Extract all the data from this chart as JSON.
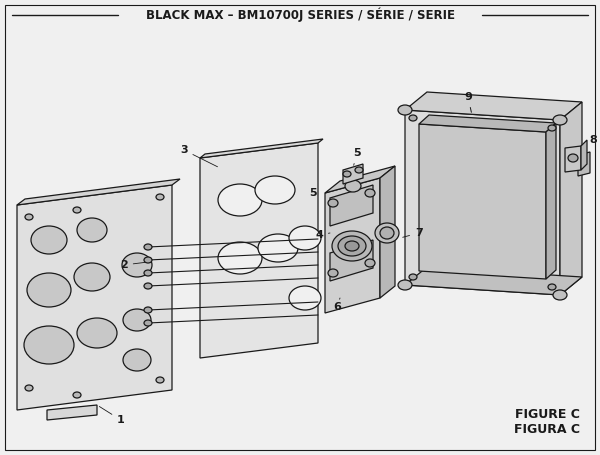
{
  "title": "BLACK MAX – BM10700J SERIES / SÉRIE / SERIE",
  "figure_label": "FIGURE C",
  "figure_label2": "FIGURA C",
  "bg_color": "#f0f0f0",
  "line_color": "#1a1a1a",
  "fill_light": "#e8e8e8",
  "fill_mid": "#d8d8d8",
  "fill_dark": "#c8c8c8",
  "title_fontsize": 8.5,
  "label_fontsize": 8,
  "fig_label_fontsize": 9,
  "lw": 0.9
}
